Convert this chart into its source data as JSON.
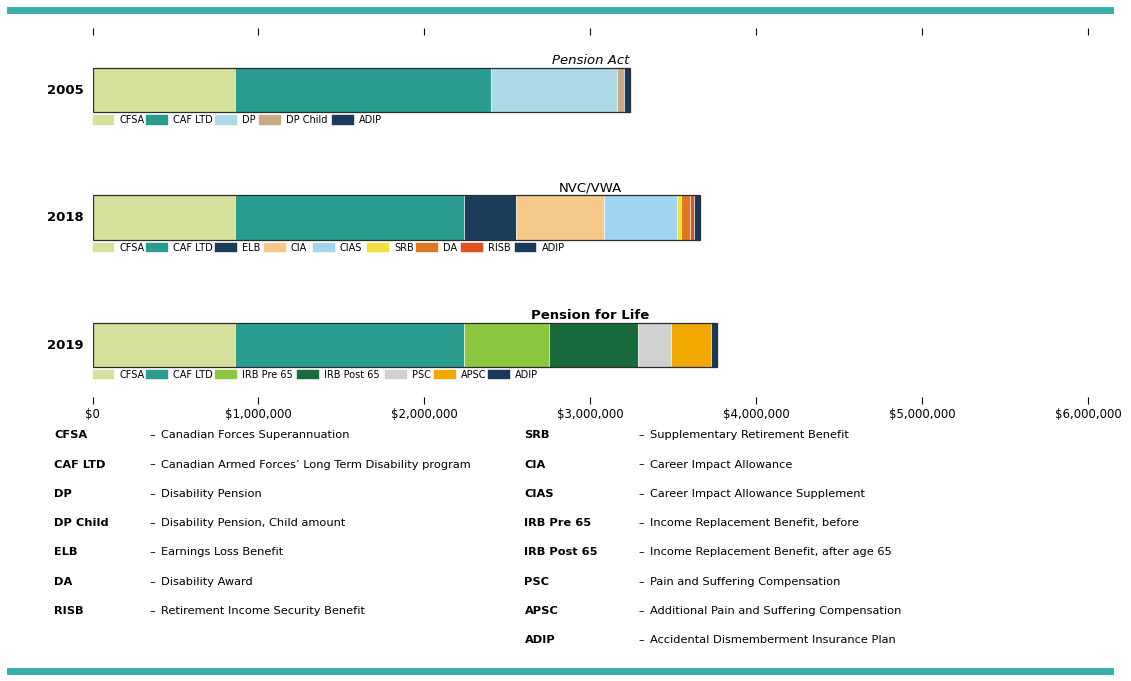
{
  "border_color": "#3aafa9",
  "background": "#ffffff",
  "x_max": 6000000,
  "x_ticks": [
    0,
    1000000,
    2000000,
    3000000,
    4000000,
    5000000,
    6000000
  ],
  "x_tick_labels": [
    "$0",
    "$1,000,000",
    "$2,000,000",
    "$3,000,000",
    "$4,000,000",
    "$5,000,000",
    "$6,000,000"
  ],
  "rows": [
    {
      "year": "2005",
      "title": "Pension Act",
      "title_italic": true,
      "title_bold": false,
      "segments": [
        {
          "label": "CFSA",
          "value": 860000,
          "color": "#d6e09a"
        },
        {
          "label": "CAF LTD",
          "value": 1540000,
          "color": "#2a9d8f"
        },
        {
          "label": "DP",
          "value": 760000,
          "color": "#add8e6"
        },
        {
          "label": "DP Child",
          "value": 42000,
          "color": "#c8aa82"
        },
        {
          "label": "ADIP",
          "value": 38000,
          "color": "#1a3a5c"
        }
      ]
    },
    {
      "year": "2018",
      "title": "NVC/VWA",
      "title_italic": false,
      "title_bold": false,
      "segments": [
        {
          "label": "CFSA",
          "value": 860000,
          "color": "#d6e09a"
        },
        {
          "label": "CAF LTD",
          "value": 1380000,
          "color": "#2a9d8f"
        },
        {
          "label": "ELB",
          "value": 310000,
          "color": "#1c3d5a"
        },
        {
          "label": "CIA",
          "value": 530000,
          "color": "#f5c98a"
        },
        {
          "label": "CIAS",
          "value": 440000,
          "color": "#a0d4f0"
        },
        {
          "label": "SRB",
          "value": 28000,
          "color": "#f0e040"
        },
        {
          "label": "DA",
          "value": 55000,
          "color": "#e07820"
        },
        {
          "label": "RISB",
          "value": 20000,
          "color": "#e05020"
        },
        {
          "label": "ADIP",
          "value": 38000,
          "color": "#1a3a5c"
        }
      ]
    },
    {
      "year": "2019",
      "title": "Pension for Life",
      "title_italic": false,
      "title_bold": true,
      "segments": [
        {
          "label": "CFSA",
          "value": 860000,
          "color": "#d6e09a"
        },
        {
          "label": "CAF LTD",
          "value": 1380000,
          "color": "#2a9d8f"
        },
        {
          "label": "IRB Pre 65",
          "value": 510000,
          "color": "#8dc63f"
        },
        {
          "label": "IRB Post 65",
          "value": 540000,
          "color": "#1a6b3c"
        },
        {
          "label": "PSC",
          "value": 195000,
          "color": "#d0d0d0"
        },
        {
          "label": "APSC",
          "value": 240000,
          "color": "#f0a800"
        },
        {
          "label": "ADIP",
          "value": 38000,
          "color": "#1a3a5c"
        }
      ]
    }
  ],
  "legend_rows": [
    [
      {
        "label": "CFSA",
        "color": "#d6e09a"
      },
      {
        "label": "CAF LTD",
        "color": "#2a9d8f"
      },
      {
        "label": "DP",
        "color": "#add8e6"
      },
      {
        "label": "DP Child",
        "color": "#c8aa82"
      },
      {
        "label": "ADIP",
        "color": "#1a3a5c"
      }
    ],
    [
      {
        "label": "CFSA",
        "color": "#d6e09a"
      },
      {
        "label": "CAF LTD",
        "color": "#2a9d8f"
      },
      {
        "label": "ELB",
        "color": "#1c3d5a"
      },
      {
        "label": "CIA",
        "color": "#f5c98a"
      },
      {
        "label": "CIAS",
        "color": "#a0d4f0"
      },
      {
        "label": "SRB",
        "color": "#f0e040"
      },
      {
        "label": "DA",
        "color": "#e07820"
      },
      {
        "label": "RISB",
        "color": "#e05020"
      },
      {
        "label": "ADIP",
        "color": "#1a3a5c"
      }
    ],
    [
      {
        "label": "CFSA",
        "color": "#d6e09a"
      },
      {
        "label": "CAF LTD",
        "color": "#2a9d8f"
      },
      {
        "label": "IRB Pre 65",
        "color": "#8dc63f"
      },
      {
        "label": "IRB Post 65",
        "color": "#1a6b3c"
      },
      {
        "label": "PSC",
        "color": "#d0d0d0"
      },
      {
        "label": "APSC",
        "color": "#f0a800"
      },
      {
        "label": "ADIP",
        "color": "#1a3a5c"
      }
    ]
  ],
  "glossary_left": [
    {
      "abbr": "CFSA",
      "desc": "Canadian Forces Superannuation"
    },
    {
      "abbr": "CAF LTD",
      "desc": "Canadian Armed Forces’ Long Term Disability program"
    },
    {
      "abbr": "DP",
      "desc": "Disability Pension"
    },
    {
      "abbr": "DP Child",
      "desc": "Disability Pension, Child amount"
    },
    {
      "abbr": "ELB",
      "desc": "Earnings Loss Benefit"
    },
    {
      "abbr": "DA",
      "desc": "Disability Award"
    },
    {
      "abbr": "RISB",
      "desc": "Retirement Income Security Benefit"
    }
  ],
  "glossary_right": [
    {
      "abbr": "SRB",
      "desc": "Supplementary Retirement Benefit"
    },
    {
      "abbr": "CIA",
      "desc": "Career Impact Allowance"
    },
    {
      "abbr": "CIAS",
      "desc": "Career Impact Allowance Supplement"
    },
    {
      "abbr": "IRB Pre 65",
      "desc": "Income Replacement Benefit, before"
    },
    {
      "abbr": "IRB Post 65",
      "desc": "Income Replacement Benefit, after age 65"
    },
    {
      "abbr": "PSC",
      "desc": "Pain and Suffering Compensation"
    },
    {
      "abbr": "APSC",
      "desc": "Additional Pain and Suffering Compensation"
    },
    {
      "abbr": "ADIP",
      "desc": "Accidental Dismemberment Insurance Plan"
    }
  ]
}
